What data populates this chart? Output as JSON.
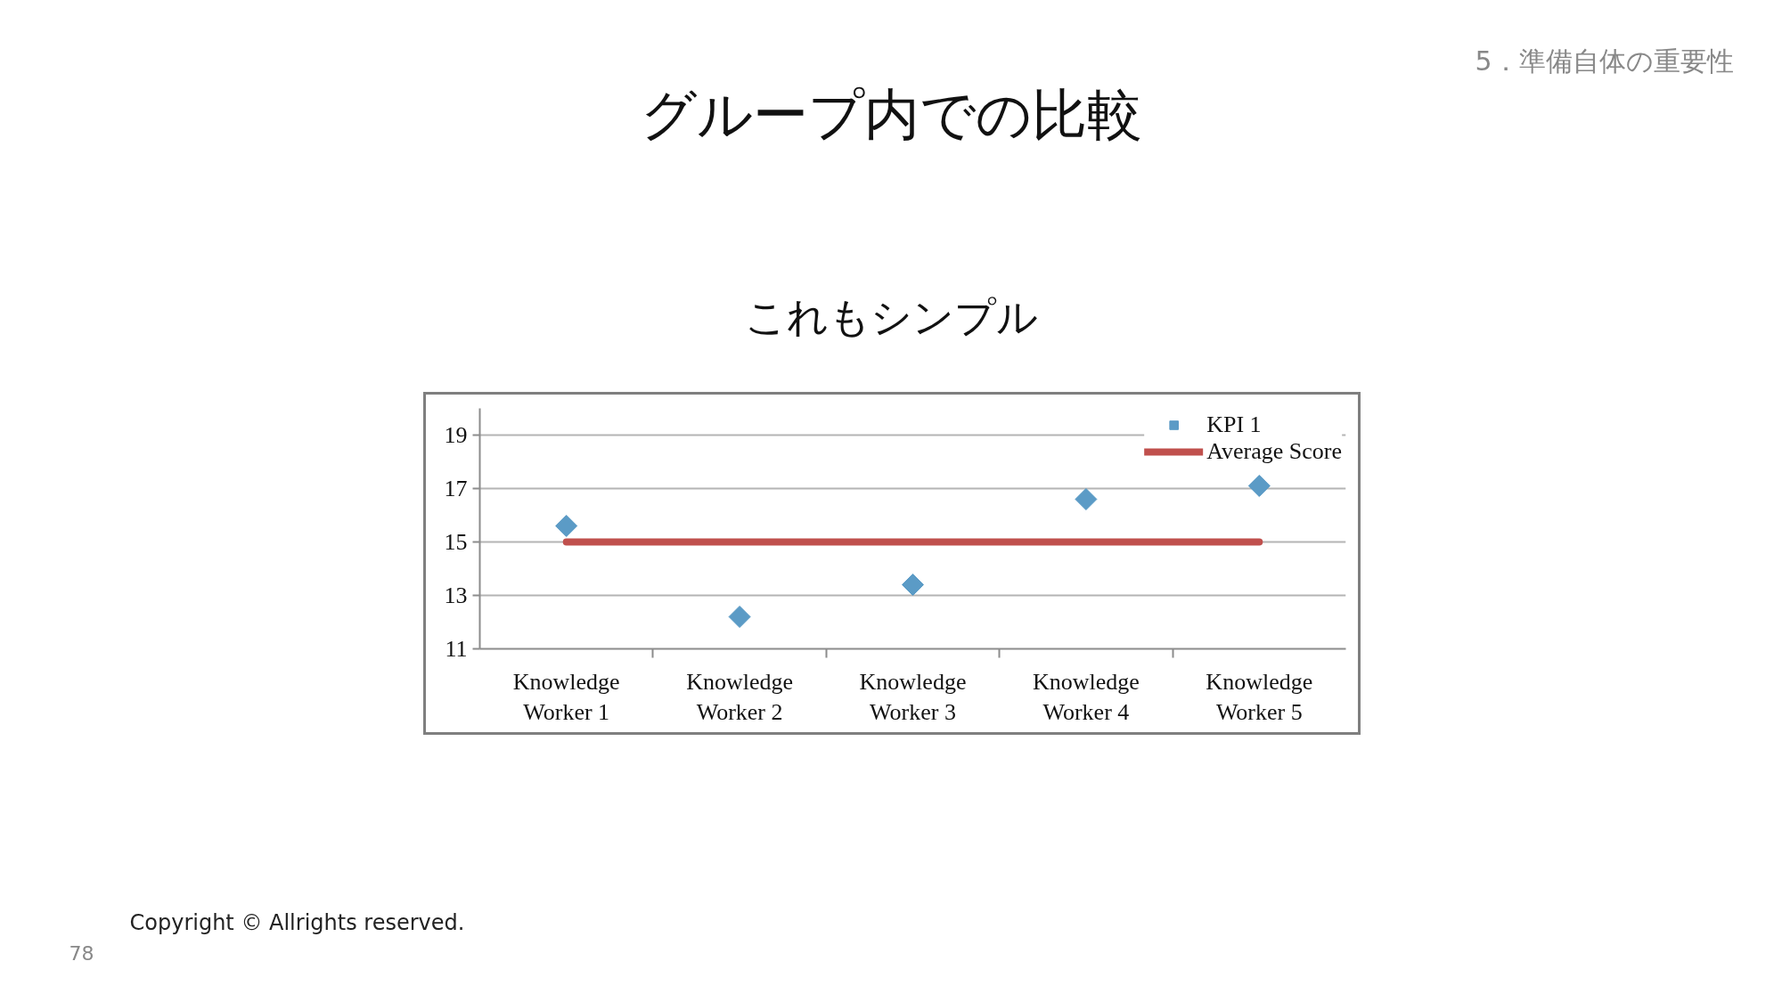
{
  "chart_data": {
    "type": "scatter",
    "title": "グループ内での比較",
    "subtitle": "これもシンプル",
    "annotations": [
      "5．準備自体の重要性",
      "Copyright © Allrights reserved.",
      "78"
    ],
    "categories": [
      "Knowledge Worker 1",
      "Knowledge Worker 2",
      "Knowledge Worker 3",
      "Knowledge Worker 4",
      "Knowledge Worker 5"
    ],
    "series": [
      {
        "name": "KPI 1",
        "marker": "diamond",
        "color": "#5b9bc6",
        "values": [
          15.6,
          12.2,
          13.4,
          16.6,
          17.1
        ]
      },
      {
        "name": "Average Score",
        "type": "line",
        "color": "#c0504d",
        "values": [
          15,
          15,
          15,
          15,
          15
        ]
      }
    ],
    "ylim": [
      11,
      20
    ],
    "yticks": [
      11,
      13,
      15,
      17,
      19
    ],
    "grid": "y",
    "legend": "top right"
  }
}
